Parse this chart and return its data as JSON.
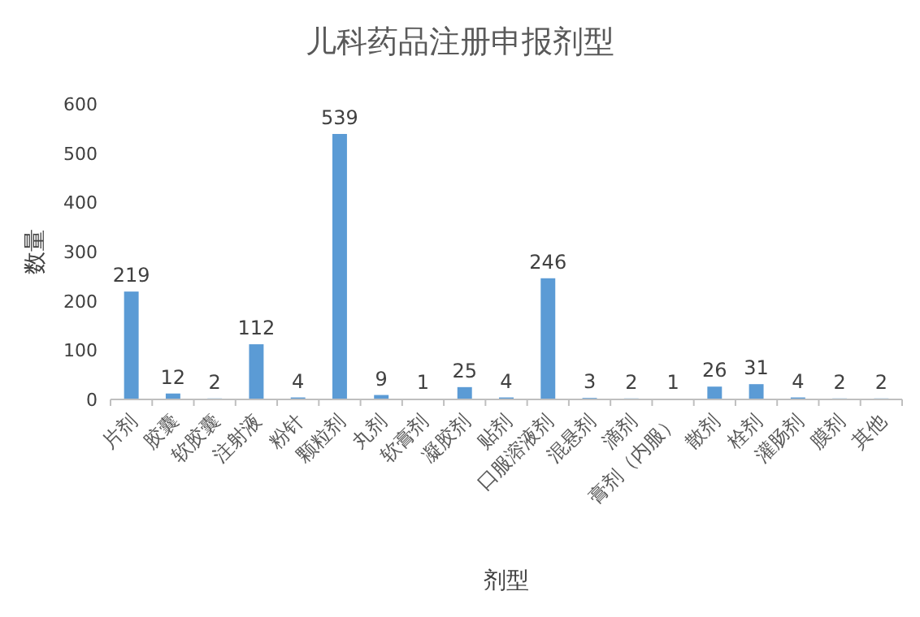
{
  "chart_data": {
    "type": "bar",
    "title": "儿科药品注册申报剂型",
    "xlabel": "剂型",
    "ylabel": "数量",
    "categories": [
      "片剂",
      "胶囊",
      "软胶囊",
      "注射液",
      "粉针",
      "颗粒剂",
      "丸剂",
      "软膏剂",
      "凝胶剂",
      "贴剂",
      "口服溶液剂",
      "混悬剂",
      "滴剂",
      "膏剂（内服）",
      "散剂",
      "栓剂",
      "灌肠剂",
      "膜剂",
      "其他"
    ],
    "values": [
      219,
      12,
      2,
      112,
      4,
      539,
      9,
      1,
      25,
      4,
      246,
      3,
      2,
      1,
      26,
      31,
      4,
      2,
      2
    ],
    "color": "#5b9bd5",
    "ylim": [
      0,
      600
    ],
    "yticks": [
      0,
      100,
      200,
      300,
      400,
      500,
      600
    ],
    "data_labels": true
  }
}
